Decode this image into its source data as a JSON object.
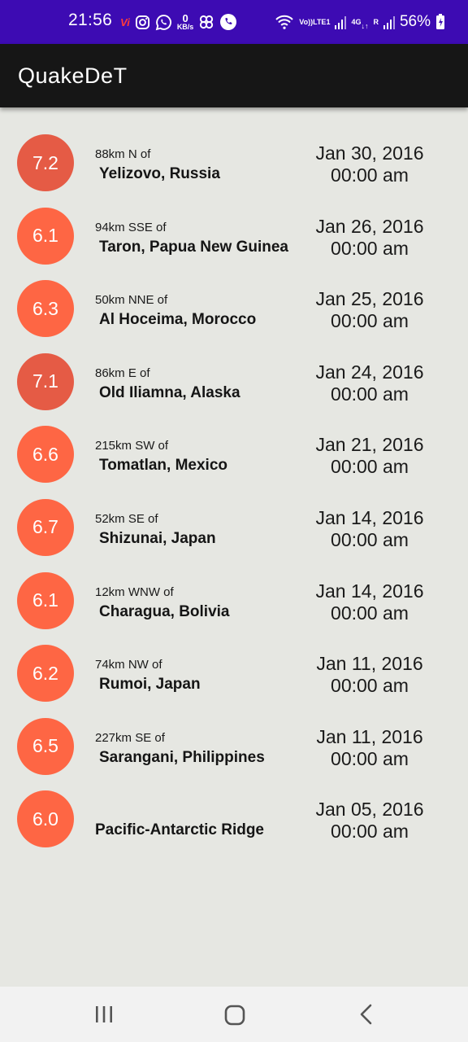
{
  "status_bar": {
    "time": "21:56",
    "vi_label": "Vi",
    "data_speed_value": "0",
    "data_speed_unit": "KB/s",
    "volte_line1": "Vo))",
    "volte_line2": "LTE1",
    "net_type": "4G",
    "roaming": "R",
    "battery_percent": "56%",
    "icons": [
      "vi-icon",
      "instagram-icon",
      "whatsapp-icon",
      "data-speed-icon",
      "pinwheel-icon",
      "phone-icon",
      "wifi-icon",
      "volte-icon",
      "signal-icon",
      "4g-icon",
      "signal-icon",
      "battery-icon"
    ]
  },
  "app_bar": {
    "title": "QuakeDeT"
  },
  "colors": {
    "status_bar": "#3d0bb3",
    "app_bar": "#161616",
    "background": "#e6e7e2",
    "mag_light": "#fe6644",
    "mag_dark": "#e55b45"
  },
  "earthquakes": [
    {
      "magnitude": "7.2",
      "offset": "88km N of",
      "place": "Yelizovo, Russia",
      "date": "Jan 30, 2016",
      "time": "00:00 am",
      "color": "#e55b45"
    },
    {
      "magnitude": "6.1",
      "offset": "94km SSE of",
      "place": "Taron, Papua New Guinea",
      "date": "Jan 26, 2016",
      "time": "00:00 am",
      "color": "#fe6644"
    },
    {
      "magnitude": "6.3",
      "offset": "50km NNE of",
      "place": "Al Hoceima, Morocco",
      "date": "Jan 25, 2016",
      "time": "00:00 am",
      "color": "#fe6644"
    },
    {
      "magnitude": "7.1",
      "offset": "86km E of",
      "place": "Old Iliamna, Alaska",
      "date": "Jan 24, 2016",
      "time": "00:00 am",
      "color": "#e55b45"
    },
    {
      "magnitude": "6.6",
      "offset": "215km SW of",
      "place": "Tomatlan, Mexico",
      "date": "Jan 21, 2016",
      "time": "00:00 am",
      "color": "#fe6644"
    },
    {
      "magnitude": "6.7",
      "offset": "52km SE of",
      "place": "Shizunai, Japan",
      "date": "Jan 14, 2016",
      "time": "00:00 am",
      "color": "#fe6644"
    },
    {
      "magnitude": "6.1",
      "offset": "12km WNW of",
      "place": "Charagua, Bolivia",
      "date": "Jan 14, 2016",
      "time": "00:00 am",
      "color": "#fe6644"
    },
    {
      "magnitude": "6.2",
      "offset": "74km NW of",
      "place": "Rumoi, Japan",
      "date": "Jan 11, 2016",
      "time": "00:00 am",
      "color": "#fe6644"
    },
    {
      "magnitude": "6.5",
      "offset": "227km SE of",
      "place": "Sarangani, Philippines",
      "date": "Jan 11, 2016",
      "time": "00:00 am",
      "color": "#fe6644"
    },
    {
      "magnitude": "6.0",
      "offset": "",
      "place": "Pacific-Antarctic Ridge",
      "date": "Jan 05, 2016",
      "time": "00:00 am",
      "color": "#fe6644"
    }
  ],
  "nav_bar": {
    "buttons": [
      "recent-apps-icon",
      "home-icon",
      "back-icon"
    ]
  }
}
